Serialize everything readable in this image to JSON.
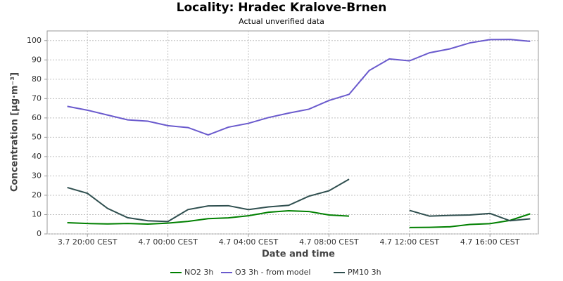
{
  "chart_data": {
    "type": "line",
    "title": "Locality: Hradec Kralove-Brnen",
    "subtitle": "Actual unverified data",
    "x_label": "Date and time",
    "y_label": "Concentration [µg·m⁻³]",
    "categories": [
      null,
      "3.7 20:00 CEST",
      null,
      null,
      null,
      "4.7 00:00 CEST",
      null,
      null,
      null,
      "4.7 04:00 CEST",
      null,
      null,
      null,
      "4.7 08:00 CEST",
      null,
      null,
      null,
      "4.7 12:00 CEST",
      null,
      null,
      null,
      "4.7 16:00 CEST",
      null,
      null
    ],
    "series": [
      {
        "name": "NO2 3h",
        "color": "#008000",
        "values": [
          5.8,
          5.4,
          5.2,
          5.4,
          5.1,
          5.6,
          6.5,
          7.9,
          8.3,
          9.4,
          11.2,
          12,
          11.6,
          9.8,
          9.2,
          null,
          null,
          3.3,
          3.4,
          3.7,
          4.9,
          5.3,
          7.0,
          10.4
        ]
      },
      {
        "name": "O3 3h - from model",
        "color": "#6a5acd",
        "values": [
          66,
          64,
          61.5,
          59,
          58.3,
          56,
          55,
          51.2,
          55.2,
          57.2,
          60.2,
          62.5,
          64.5,
          69,
          72.2,
          84.5,
          90.5,
          89.5,
          93.7,
          95.7,
          98.8,
          100.5,
          100.6,
          99.6
        ]
      },
      {
        "name": "PM10 3h",
        "color": "#2f4f4f",
        "values": [
          24,
          21,
          13.2,
          8.4,
          6.8,
          6.4,
          12.6,
          14.5,
          14.6,
          12.6,
          14,
          14.8,
          19.5,
          22.3,
          28.3,
          null,
          null,
          12.2,
          9.2,
          9.6,
          9.8,
          10.6,
          6.8,
          7.8
        ]
      }
    ],
    "ylim": [
      0,
      105
    ],
    "yticks": [
      0,
      10,
      20,
      30,
      40,
      50,
      60,
      70,
      80,
      90,
      100
    ],
    "grid": true,
    "legend": "bottom"
  }
}
